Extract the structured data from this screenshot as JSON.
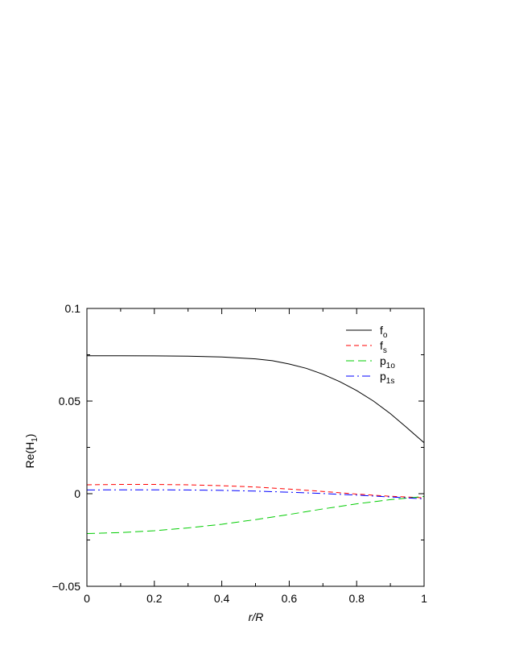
{
  "chart_data": {
    "type": "line",
    "xlabel": "r/R",
    "ylabel": "Re(H",
    "ylabel_sub": "1",
    "ylabel_close": ")",
    "xlim": [
      0,
      1
    ],
    "ylim": [
      -0.05,
      0.1
    ],
    "xticks": [
      0,
      0.2,
      0.4,
      0.6,
      0.8,
      1
    ],
    "xtick_labels": [
      "0",
      "0.2",
      "0.4",
      "0.6",
      "0.8",
      "1"
    ],
    "yticks": [
      -0.05,
      0,
      0.05,
      0.1
    ],
    "ytick_labels": [
      "−0.05",
      "0",
      "0.05",
      "0.1"
    ],
    "grid": false,
    "legend_position": "top-right",
    "series": [
      {
        "name": "f",
        "name_sub": "o",
        "color": "#000000",
        "dash": "solid",
        "x": [
          0,
          0.1,
          0.2,
          0.3,
          0.4,
          0.5,
          0.55,
          0.6,
          0.65,
          0.7,
          0.75,
          0.8,
          0.85,
          0.9,
          0.95,
          1.0
        ],
        "y": [
          0.0745,
          0.0745,
          0.0744,
          0.0742,
          0.0738,
          0.0728,
          0.0718,
          0.07,
          0.0677,
          0.0645,
          0.0605,
          0.0557,
          0.05,
          0.0432,
          0.0355,
          0.0275
        ]
      },
      {
        "name": "f",
        "name_sub": "s",
        "color": "#ff0000",
        "dash": "dashed",
        "x": [
          0,
          0.1,
          0.2,
          0.3,
          0.4,
          0.5,
          0.6,
          0.7,
          0.8,
          0.9,
          1.0
        ],
        "y": [
          0.0048,
          0.005,
          0.005,
          0.0048,
          0.0043,
          0.0036,
          0.0025,
          0.0012,
          -0.0002,
          -0.0014,
          -0.0022
        ]
      },
      {
        "name": "p",
        "name_sub": "1o",
        "color": "#00cc00",
        "dash": "longdash",
        "x": [
          0,
          0.1,
          0.2,
          0.3,
          0.4,
          0.5,
          0.6,
          0.7,
          0.8,
          0.9,
          1.0
        ],
        "y": [
          -0.0215,
          -0.021,
          -0.02,
          -0.0185,
          -0.0165,
          -0.014,
          -0.0112,
          -0.0082,
          -0.0055,
          -0.0032,
          -0.0015
        ]
      },
      {
        "name": "p",
        "name_sub": "1s",
        "color": "#0000ff",
        "dash": "dashdot",
        "x": [
          0,
          0.1,
          0.2,
          0.3,
          0.4,
          0.5,
          0.6,
          0.7,
          0.8,
          0.9,
          1.0
        ],
        "y": [
          0.002,
          0.0021,
          0.0021,
          0.002,
          0.0018,
          0.0014,
          0.0008,
          0.0001,
          -0.0008,
          -0.0018,
          -0.0028
        ]
      }
    ]
  }
}
